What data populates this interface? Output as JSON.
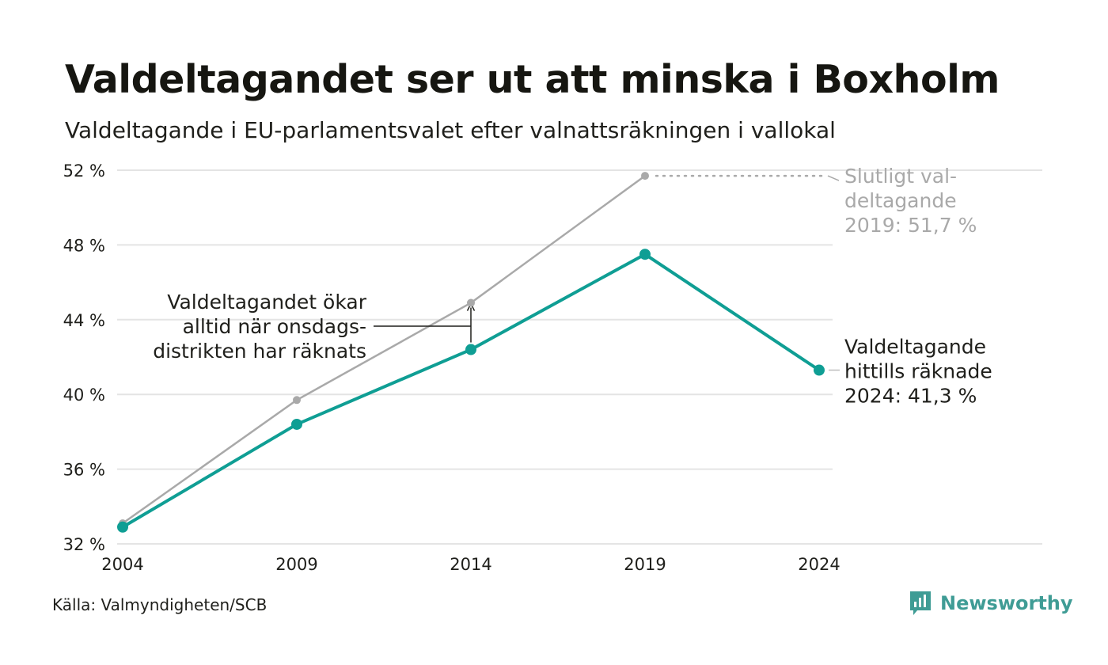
{
  "title": "Valdeltagandet ser ut att minska i Boxholm",
  "subtitle": "Valdeltagande i EU-parlamentsvalet efter valnattsräkningen i vallokal",
  "source": "Källa: Valmyndigheten/SCB",
  "brand": {
    "name": "Newsworthy",
    "color": "#3f9c95",
    "logo": "bar-chart-speech-icon"
  },
  "chart_data": {
    "type": "line",
    "x": [
      2004,
      2009,
      2014,
      2019,
      2024
    ],
    "x_ticks": [
      "2004",
      "2009",
      "2014",
      "2019",
      "2024"
    ],
    "y_ticks": [
      "32 %",
      "36 %",
      "40 %",
      "44 %",
      "48 %",
      "52 %"
    ],
    "y_tick_values": [
      32,
      36,
      40,
      44,
      48,
      52
    ],
    "ylim": [
      32,
      52
    ],
    "grid": true,
    "series": [
      {
        "key": "final",
        "color": "#a9a9a9",
        "values": [
          33.1,
          39.7,
          44.9,
          51.7,
          null
        ]
      },
      {
        "key": "valnatt",
        "color": "#0f9e94",
        "values": [
          32.9,
          38.4,
          42.4,
          47.5,
          41.3
        ]
      }
    ],
    "annotations": {
      "final_2019": [
        "Slutligt val-",
        "deltagande",
        "2019: 51,7 %"
      ],
      "counted_2024": [
        "Valdeltagande",
        "hittills räknade",
        "2024: 41,3 %"
      ],
      "difference": [
        "Valdeltagandet ökar",
        "alltid när onsdags-",
        "distrikten har räknats"
      ]
    },
    "colors": {
      "grid": "#e4e4e4",
      "annotation_gray": "#a9a9a9",
      "text": "#1f1f1b"
    }
  }
}
